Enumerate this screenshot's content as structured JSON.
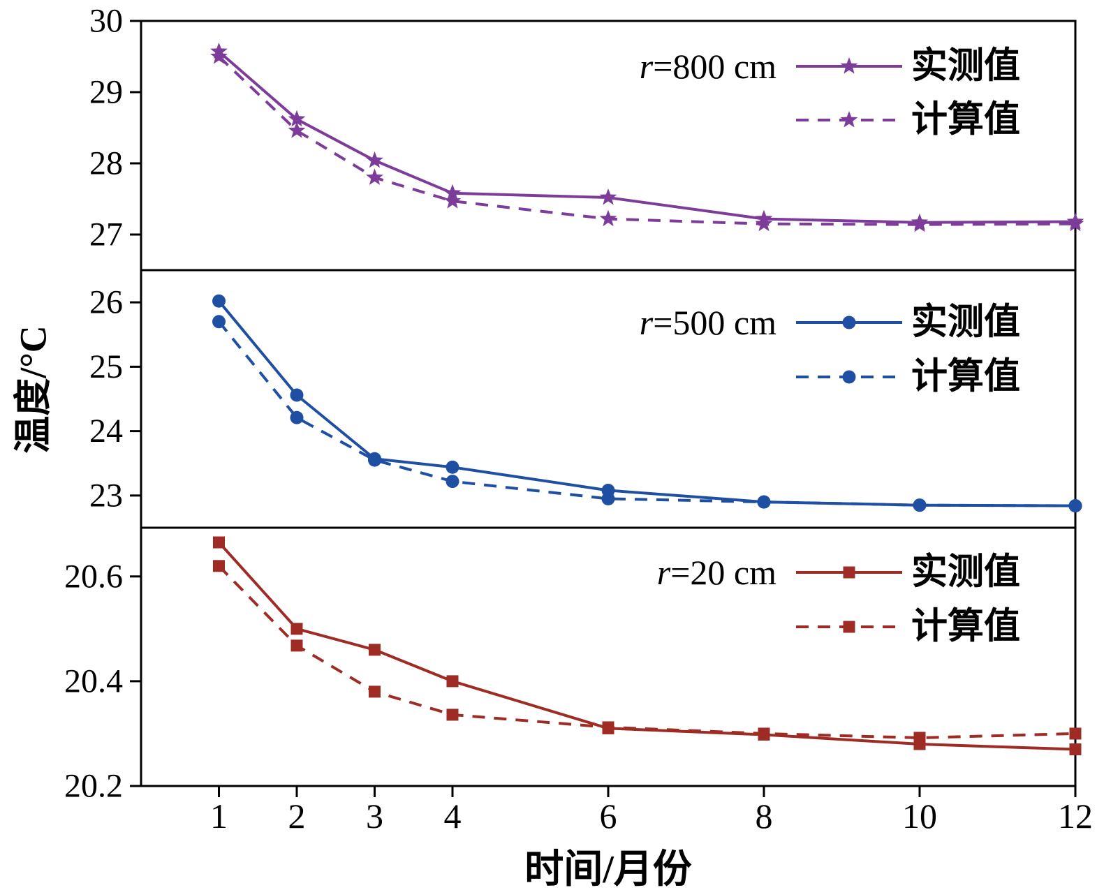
{
  "chart_meta": {
    "ylabel": "温度/°C",
    "xlabel": "时间/月份"
  },
  "x_axis": {
    "ticks": [
      1,
      2,
      3,
      4,
      6,
      8,
      10,
      12
    ],
    "labels": [
      "1",
      "2",
      "3",
      "4",
      "6",
      "8",
      "10",
      "12"
    ],
    "xlim": [
      0,
      12
    ]
  },
  "chart_data": [
    {
      "type": "line",
      "r_label": "r=800 cm",
      "color": "#7d3c9a",
      "marker": "star",
      "xlim": [
        0,
        12
      ],
      "ylim": [
        26.5,
        30
      ],
      "yticks": [
        27,
        28,
        29,
        30
      ],
      "ytick_labels": [
        "27",
        "28",
        "29",
        "30"
      ],
      "x": [
        1,
        2,
        3,
        4,
        6,
        8,
        10,
        12
      ],
      "series": [
        {
          "name": "实测值",
          "line_style": "solid",
          "values": [
            29.57,
            28.62,
            28.04,
            27.58,
            27.52,
            27.22,
            27.17,
            27.18
          ]
        },
        {
          "name": "计算值",
          "line_style": "dashed",
          "values": [
            29.5,
            28.46,
            27.8,
            27.47,
            27.22,
            27.15,
            27.14,
            27.15
          ]
        }
      ]
    },
    {
      "type": "line",
      "r_label": "r=500 cm",
      "color": "#1f4fa3",
      "marker": "circle",
      "xlim": [
        0,
        12
      ],
      "ylim": [
        22.5,
        26.5
      ],
      "yticks": [
        23,
        24,
        25,
        26
      ],
      "ytick_labels": [
        "23",
        "24",
        "25",
        "26"
      ],
      "x": [
        1,
        2,
        3,
        4,
        6,
        8,
        10,
        12
      ],
      "series": [
        {
          "name": "实测值",
          "line_style": "solid",
          "values": [
            26.02,
            24.56,
            23.57,
            23.44,
            23.08,
            22.9,
            22.85,
            22.84
          ]
        },
        {
          "name": "计算值",
          "line_style": "dashed",
          "values": [
            25.7,
            24.21,
            23.55,
            23.22,
            22.95,
            22.9,
            22.85,
            22.84
          ]
        }
      ]
    },
    {
      "type": "line",
      "r_label": "r=20 cm",
      "color": "#9e2b24",
      "marker": "square",
      "xlim": [
        0,
        12
      ],
      "ylim": [
        20.2,
        20.693
      ],
      "yticks": [
        20.2,
        20.4,
        20.6
      ],
      "ytick_labels": [
        "20.2",
        "20.4",
        "20.6"
      ],
      "x": [
        1,
        2,
        3,
        4,
        6,
        8,
        10,
        12
      ],
      "series": [
        {
          "name": "实测值",
          "line_style": "solid",
          "values": [
            20.665,
            20.5,
            20.46,
            20.4,
            20.31,
            20.298,
            20.28,
            20.27
          ]
        },
        {
          "name": "计算值",
          "line_style": "dashed",
          "values": [
            20.62,
            20.468,
            20.38,
            20.336,
            20.312,
            20.3,
            20.292,
            20.3
          ]
        }
      ]
    }
  ]
}
